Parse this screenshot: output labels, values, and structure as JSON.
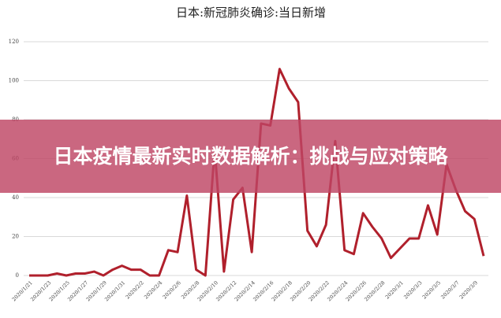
{
  "chart_data": {
    "type": "line",
    "title": "日本:新冠肺炎确诊:当日新增",
    "categories": [
      "2020/1/21",
      null,
      "2020/1/23",
      null,
      "2020/1/25",
      null,
      "2020/1/27",
      null,
      "2020/1/29",
      null,
      "2020/1/31",
      null,
      "2020/2/2",
      null,
      "2020/2/4",
      null,
      "2020/2/6",
      null,
      "2020/2/8",
      null,
      "2020/2/10",
      null,
      "2020/2/12",
      null,
      "2020/2/14",
      null,
      "2020/2/16",
      null,
      "2020/2/18",
      null,
      "2020/2/20",
      null,
      "2020/2/22",
      null,
      "2020/2/24",
      null,
      "2020/2/26",
      null,
      "2020/2/28",
      null,
      "2020/3/1",
      null,
      "2020/3/3",
      null,
      "2020/3/5",
      null,
      "2020/3/7",
      null,
      "2020/3/9",
      null
    ],
    "series": [
      {
        "color": "#b0202c",
        "values": [
          0,
          0,
          0,
          1,
          0,
          1,
          1,
          2,
          0,
          3,
          5,
          3,
          3,
          0,
          0,
          13,
          12,
          41,
          3,
          0,
          65,
          2,
          39,
          45,
          12,
          78,
          77,
          106,
          96,
          89,
          23,
          15,
          26,
          69,
          13,
          11,
          32,
          25,
          19,
          9,
          14,
          19,
          19,
          36,
          21,
          57,
          44,
          33,
          29,
          10
        ]
      }
    ],
    "ylim": [
      0,
      120
    ],
    "yticks": [
      0,
      20,
      40,
      60,
      80,
      100,
      120
    ],
    "grid": true
  },
  "overlay_title": "日本疫情最新实时数据解析：挑战与应对策略"
}
